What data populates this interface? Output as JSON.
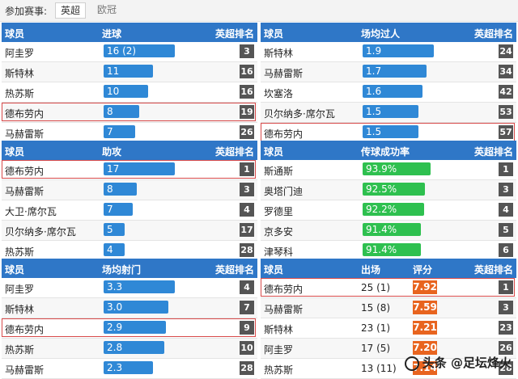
{
  "topbar": {
    "label": "参加赛事:",
    "tab_active": "英超",
    "tab_inactive": "欧冠"
  },
  "headers": {
    "player": "球员",
    "rank": "英超排名"
  },
  "panels": [
    {
      "stat": "进球",
      "rows": [
        {
          "name": "阿圭罗",
          "value": "16 (2)",
          "num": 16,
          "rank": "3"
        },
        {
          "name": "斯特林",
          "value": "11",
          "num": 11,
          "rank": "16"
        },
        {
          "name": "热苏斯",
          "value": "10",
          "num": 10,
          "rank": "16"
        },
        {
          "name": "德布劳内",
          "value": "8",
          "num": 8,
          "rank": "19",
          "hl": true
        },
        {
          "name": "马赫雷斯",
          "value": "7",
          "num": 7,
          "rank": "26"
        }
      ]
    },
    {
      "stat": "场均过人",
      "rows": [
        {
          "name": "斯特林",
          "value": "1.9",
          "num": 1.9,
          "rank": "24"
        },
        {
          "name": "马赫雷斯",
          "value": "1.7",
          "num": 1.7,
          "rank": "34"
        },
        {
          "name": "坎塞洛",
          "value": "1.6",
          "num": 1.6,
          "rank": "42"
        },
        {
          "name": "贝尔纳多·席尔瓦",
          "value": "1.5",
          "num": 1.5,
          "rank": "53"
        },
        {
          "name": "德布劳内",
          "value": "1.5",
          "num": 1.5,
          "rank": "57",
          "hl": true
        }
      ]
    },
    {
      "stat": "助攻",
      "rows": [
        {
          "name": "德布劳内",
          "value": "17",
          "num": 17,
          "rank": "1",
          "hl": true
        },
        {
          "name": "马赫雷斯",
          "value": "8",
          "num": 8,
          "rank": "3"
        },
        {
          "name": "大卫·席尔瓦",
          "value": "7",
          "num": 7,
          "rank": "4"
        },
        {
          "name": "贝尔纳多·席尔瓦",
          "value": "5",
          "num": 5,
          "rank": "17"
        },
        {
          "name": "热苏斯",
          "value": "4",
          "num": 4,
          "rank": "28"
        }
      ]
    },
    {
      "stat": "传球成功率",
      "rows": [
        {
          "name": "斯通斯",
          "value": "93.9%",
          "num": 93.9,
          "rank": "1"
        },
        {
          "name": "奥塔门迪",
          "value": "92.5%",
          "num": 92.5,
          "rank": "3"
        },
        {
          "name": "罗德里",
          "value": "92.2%",
          "num": 92.2,
          "rank": "4"
        },
        {
          "name": "京多安",
          "value": "91.4%",
          "num": 91.4,
          "rank": "5"
        },
        {
          "name": "津琴科",
          "value": "91.4%",
          "num": 91.4,
          "rank": "6"
        }
      ]
    },
    {
      "stat": "场均射门",
      "rows": [
        {
          "name": "阿圭罗",
          "value": "3.3",
          "num": 3.3,
          "rank": "4"
        },
        {
          "name": "斯特林",
          "value": "3.0",
          "num": 3.0,
          "rank": "7"
        },
        {
          "name": "德布劳内",
          "value": "2.9",
          "num": 2.9,
          "rank": "9",
          "hl": true
        },
        {
          "name": "热苏斯",
          "value": "2.8",
          "num": 2.8,
          "rank": "10"
        },
        {
          "name": "马赫雷斯",
          "value": "2.3",
          "num": 2.3,
          "rank": "28"
        }
      ]
    }
  ],
  "rating_panel": {
    "col_apps": "出场",
    "col_rating": "评分",
    "rows": [
      {
        "name": "德布劳内",
        "apps": "25 (1)",
        "rating": "7.92",
        "rank": "1",
        "hl": true
      },
      {
        "name": "马赫雷斯",
        "apps": "15 (8)",
        "rating": "7.59",
        "rank": "3"
      },
      {
        "name": "斯特林",
        "apps": "23 (1)",
        "rating": "7.21",
        "rank": "23"
      },
      {
        "name": "阿圭罗",
        "apps": "17 (5)",
        "rating": "7.20",
        "rank": "26"
      },
      {
        "name": "热苏斯",
        "apps": "13 (11)",
        "rating": "7.14",
        "rank": "28"
      }
    ]
  },
  "watermark": "头条 @足坛烽火",
  "colors": {
    "header": "#2f77c7",
    "bar_blue": "#2f88d6",
    "bar_green": "#2ec04f",
    "rating": "#e8641f",
    "rank_bg": "#555555",
    "highlight": "#d84a4a"
  }
}
